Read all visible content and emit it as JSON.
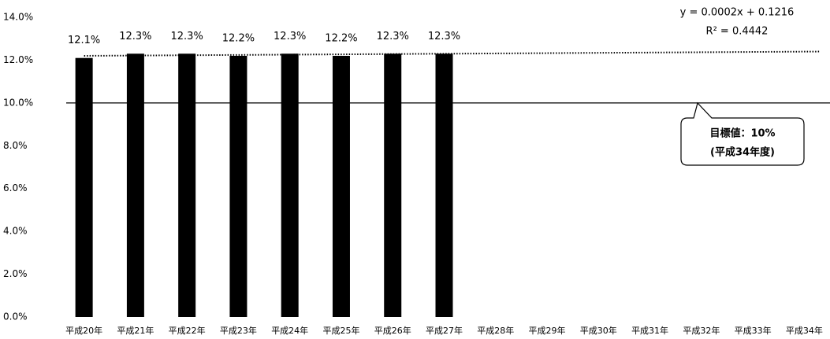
{
  "chart_data": {
    "type": "bar",
    "categories": [
      "平成20年",
      "平成21年",
      "平成22年",
      "平成23年",
      "平成24年",
      "平成25年",
      "平成26年",
      "平成27年",
      "平成28年",
      "平成29年",
      "平成30年",
      "平成31年",
      "平成32年",
      "平成33年",
      "平成34年"
    ],
    "values": [
      12.1,
      12.3,
      12.3,
      12.2,
      12.3,
      12.2,
      12.3,
      12.3,
      null,
      null,
      null,
      null,
      null,
      null,
      null
    ],
    "value_labels": [
      "12.1%",
      "12.3%",
      "12.3%",
      "12.2%",
      "12.3%",
      "12.2%",
      "12.3%",
      "12.3%",
      null,
      null,
      null,
      null,
      null,
      null,
      null
    ],
    "color": "#000000",
    "ylim": [
      0,
      14
    ],
    "yticks": [
      {
        "value": 0,
        "label": "0.0%"
      },
      {
        "value": 2,
        "label": "2.0%"
      },
      {
        "value": 4,
        "label": "4.0%"
      },
      {
        "value": 6,
        "label": "6.0%"
      },
      {
        "value": 8,
        "label": "8.0%"
      },
      {
        "value": 10,
        "label": "10.0%"
      },
      {
        "value": 12,
        "label": "12.0%"
      },
      {
        "value": 14,
        "label": "14.0%"
      }
    ],
    "target": {
      "value": 10,
      "label": "目標値：10%",
      "sublabel": "(平成34年度)"
    },
    "trendline": {
      "equation": "y = 0.0002x + 0.1216",
      "r_squared": "R² = 0.4442"
    }
  }
}
